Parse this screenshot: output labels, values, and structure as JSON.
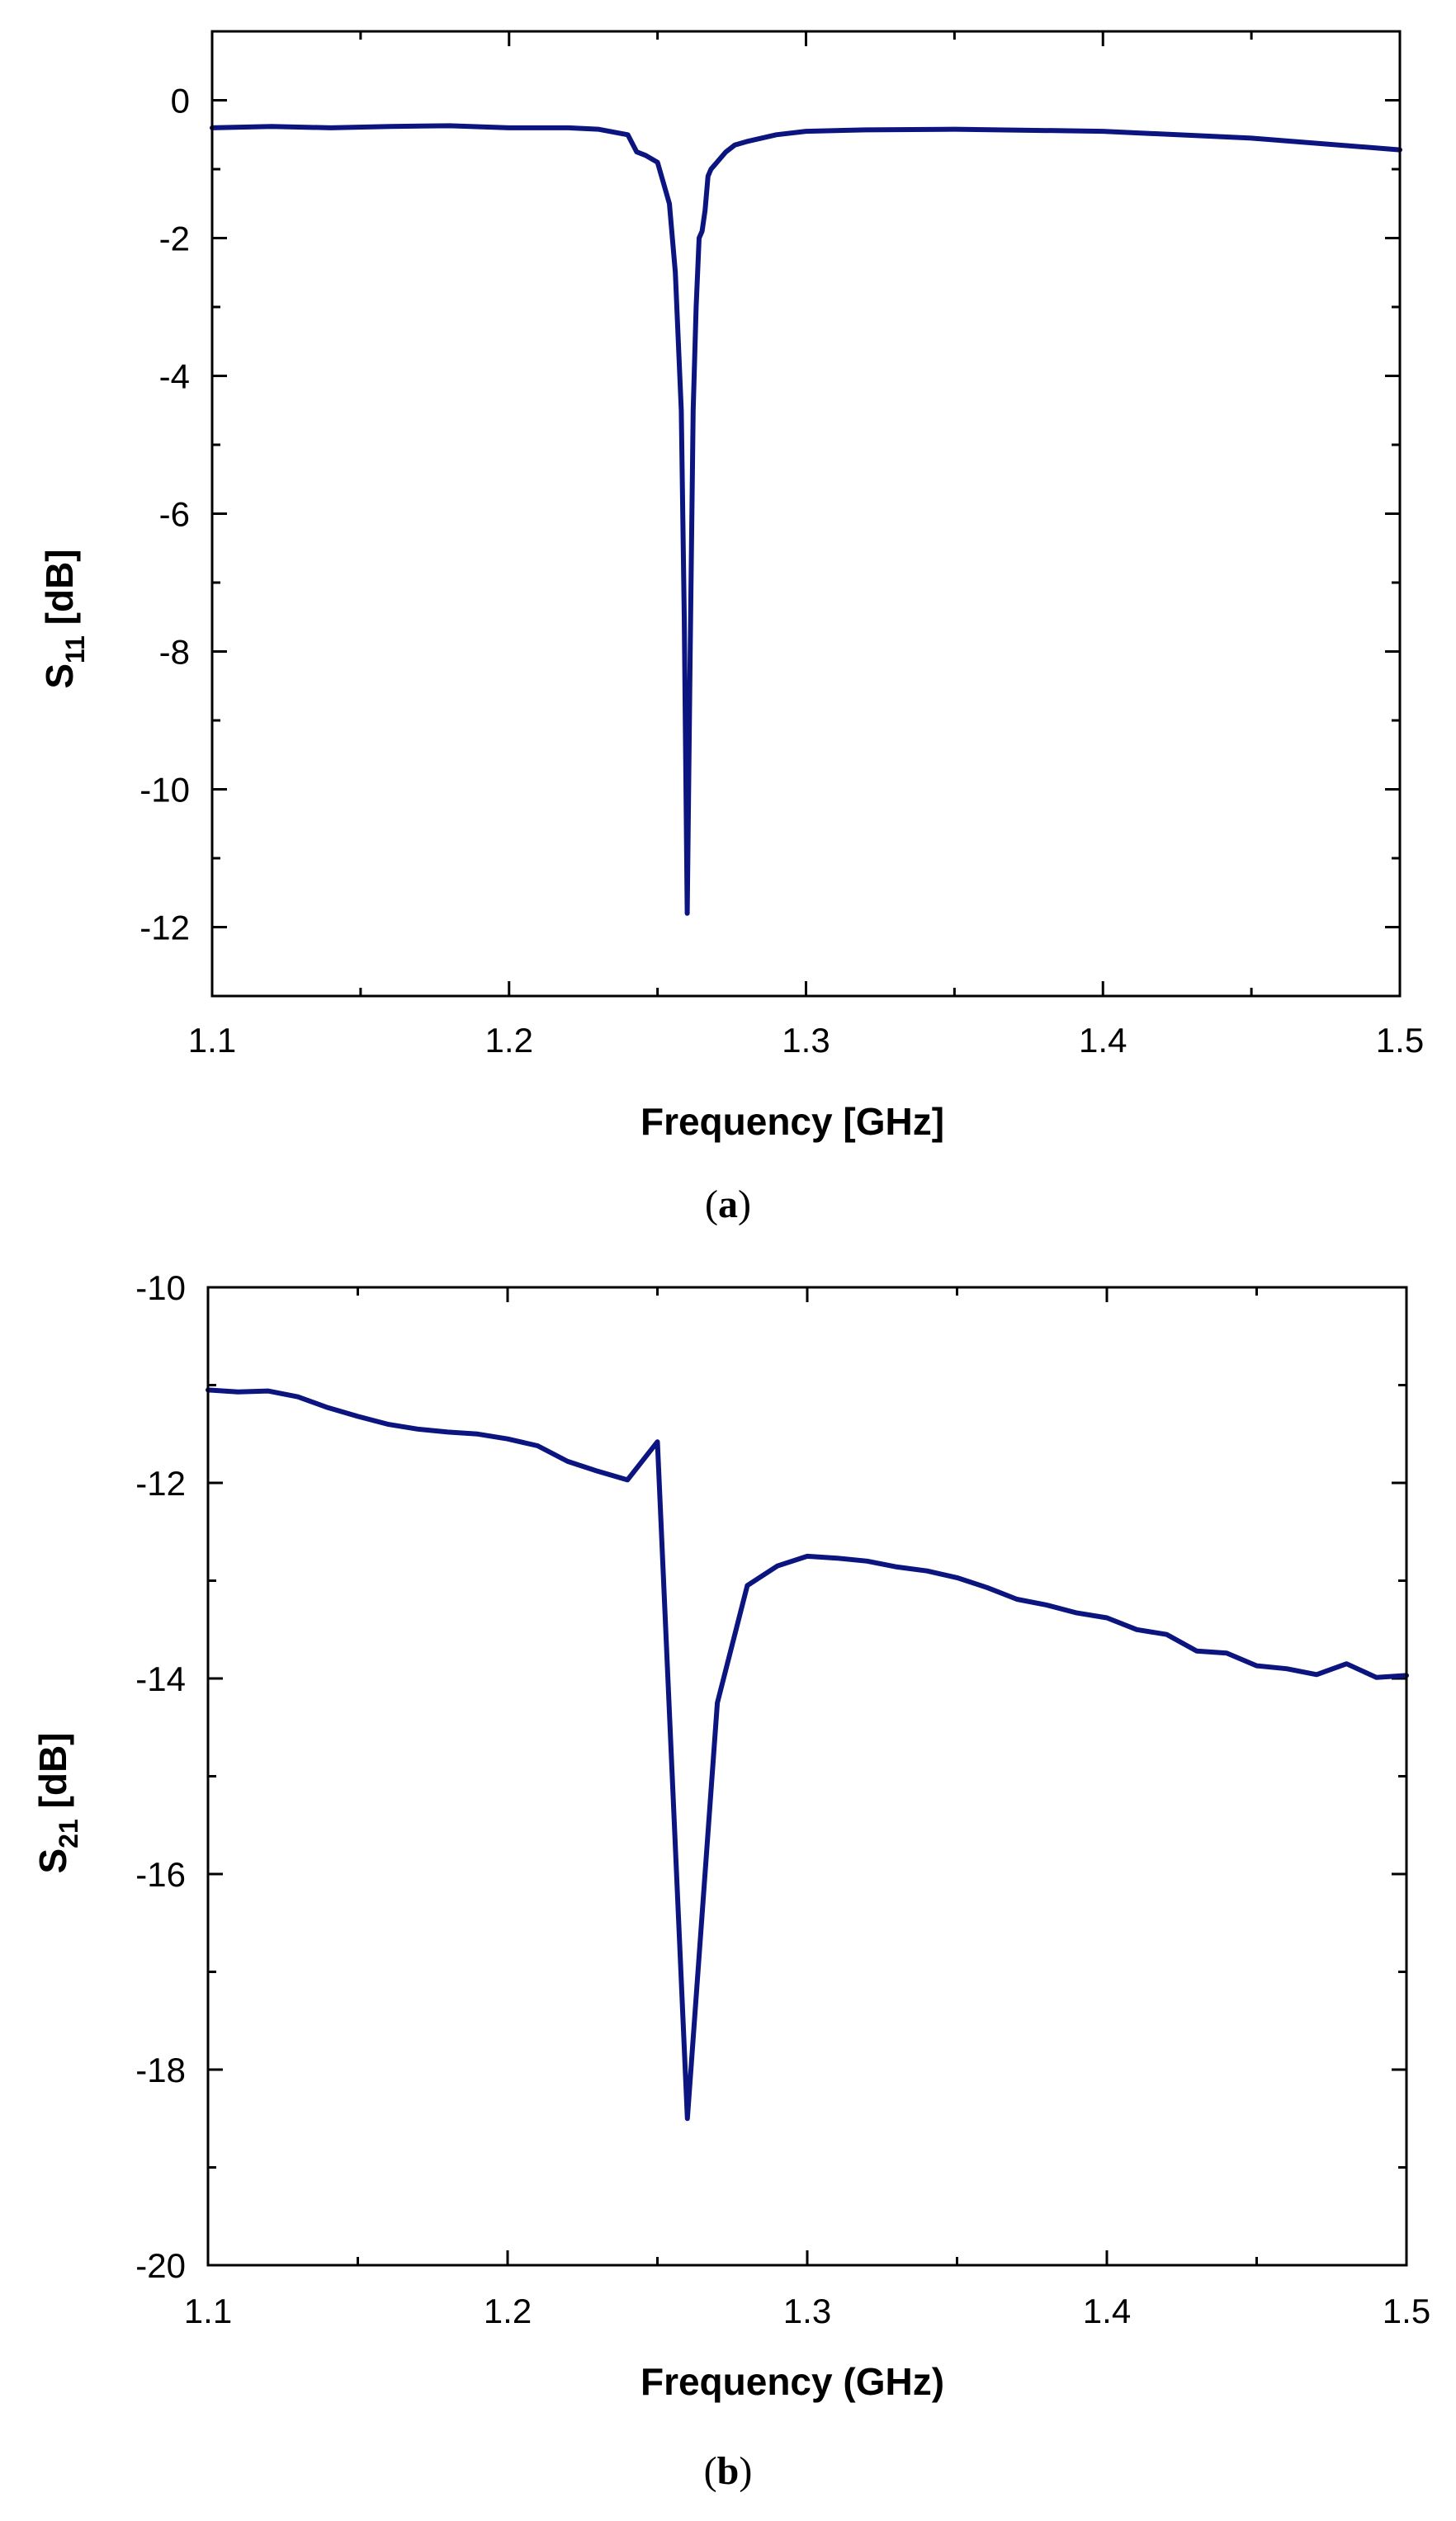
{
  "colors": {
    "series": "#0c1480",
    "axis": "#000000"
  },
  "chart_data": [
    {
      "type": "line",
      "panel": "a",
      "caption": "a",
      "xlabel": "Frequency [GHz]",
      "ylabel_main": "S",
      "ylabel_sub": "11",
      "ylabel_unit": " [dB]",
      "xlim": [
        1.1,
        1.5
      ],
      "ylim": [
        -13,
        1
      ],
      "xticks": [
        1.1,
        1.2,
        1.3,
        1.4,
        1.5
      ],
      "xtick_labels": [
        "1.1",
        "1.2",
        "1.3",
        "1.4",
        "1.5"
      ],
      "yticks": [
        0,
        -2,
        -4,
        -6,
        -8,
        -10,
        -12
      ],
      "ytick_labels": [
        "0",
        "-2",
        "-4",
        "-6",
        "-8",
        "-10",
        "-12"
      ],
      "series": [
        {
          "x": [
            1.1,
            1.12,
            1.14,
            1.16,
            1.18,
            1.2,
            1.22,
            1.23,
            1.24,
            1.243,
            1.246,
            1.25,
            1.252,
            1.254,
            1.256,
            1.258,
            1.259,
            1.26,
            1.261,
            1.262,
            1.263,
            1.264,
            1.265,
            1.266,
            1.267,
            1.268,
            1.27,
            1.273,
            1.276,
            1.28,
            1.285,
            1.29,
            1.3,
            1.32,
            1.35,
            1.4,
            1.45,
            1.5
          ],
          "y": [
            -0.4,
            -0.38,
            -0.4,
            -0.38,
            -0.37,
            -0.4,
            -0.4,
            -0.42,
            -0.5,
            -0.75,
            -0.8,
            -0.9,
            -1.2,
            -1.5,
            -2.5,
            -4.5,
            -7.5,
            -11.8,
            -8.0,
            -4.5,
            -3.0,
            -2.0,
            -1.9,
            -1.6,
            -1.1,
            -1.0,
            -0.9,
            -0.75,
            -0.65,
            -0.6,
            -0.55,
            -0.5,
            -0.45,
            -0.43,
            -0.42,
            -0.45,
            -0.55,
            -0.72
          ]
        }
      ]
    },
    {
      "type": "line",
      "panel": "b",
      "caption": "b",
      "xlabel": "Frequency (GHz)",
      "ylabel_main": "S",
      "ylabel_sub": "21",
      "ylabel_unit": " [dB]",
      "xlim": [
        1.1,
        1.5
      ],
      "ylim": [
        -20,
        -10
      ],
      "xticks": [
        1.1,
        1.2,
        1.3,
        1.4,
        1.5
      ],
      "xtick_labels": [
        "1.1",
        "1.2",
        "1.3",
        "1.4",
        "1.5"
      ],
      "yticks": [
        -10,
        -12,
        -14,
        -16,
        -18,
        -20
      ],
      "ytick_labels": [
        "-10",
        "-12",
        "-14",
        "-16",
        "-18",
        "-20"
      ],
      "series": [
        {
          "x": [
            1.1,
            1.11,
            1.12,
            1.13,
            1.14,
            1.15,
            1.16,
            1.17,
            1.18,
            1.19,
            1.2,
            1.21,
            1.22,
            1.23,
            1.24,
            1.25,
            1.26,
            1.27,
            1.28,
            1.29,
            1.3,
            1.31,
            1.32,
            1.33,
            1.34,
            1.35,
            1.36,
            1.37,
            1.38,
            1.39,
            1.4,
            1.41,
            1.42,
            1.43,
            1.44,
            1.45,
            1.46,
            1.47,
            1.48,
            1.49,
            1.5
          ],
          "y": [
            -11.05,
            -11.07,
            -11.06,
            -11.12,
            -11.23,
            -11.32,
            -11.4,
            -11.45,
            -11.48,
            -11.5,
            -11.55,
            -11.62,
            -11.78,
            -11.88,
            -11.97,
            -11.58,
            -18.5,
            -14.25,
            -13.05,
            -12.85,
            -12.75,
            -12.77,
            -12.8,
            -12.86,
            -12.9,
            -12.97,
            -13.07,
            -13.19,
            -13.25,
            -13.33,
            -13.38,
            -13.5,
            -13.55,
            -13.72,
            -13.74,
            -13.87,
            -13.9,
            -13.96,
            -13.85,
            -13.99,
            -13.97
          ]
        }
      ]
    }
  ]
}
